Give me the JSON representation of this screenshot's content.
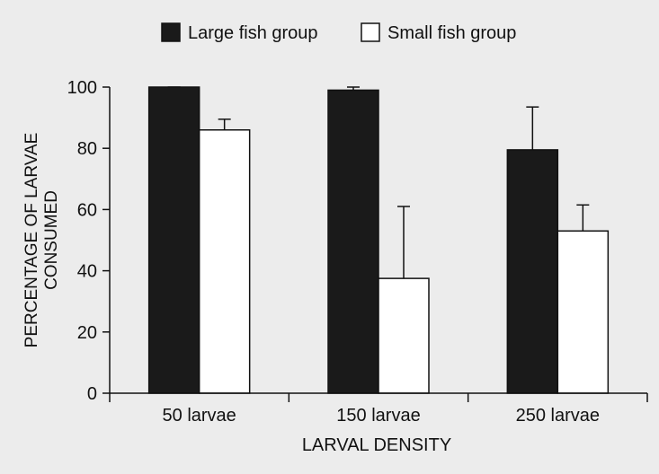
{
  "chart_data": {
    "type": "bar",
    "title": "",
    "xlabel": "LARVAL DENSITY",
    "ylabel_lines": [
      "PERCENTAGE OF LARVAE",
      "CONSUMED"
    ],
    "categories": [
      "50 larvae",
      "150 larvae",
      "250 larvae"
    ],
    "ylim": [
      0,
      100
    ],
    "yticks": [
      0,
      20,
      40,
      60,
      80,
      100
    ],
    "grid": false,
    "legend_position": "top-center",
    "series": [
      {
        "name": "Large fish group",
        "color": "#1a1a1a",
        "values": [
          100,
          99,
          79.5
        ],
        "error_upper": [
          0,
          1,
          14
        ]
      },
      {
        "name": "Small fish group",
        "color": "#ffffff",
        "values": [
          86,
          37.5,
          53
        ],
        "error_upper": [
          3.5,
          23.5,
          8.5
        ]
      }
    ]
  }
}
